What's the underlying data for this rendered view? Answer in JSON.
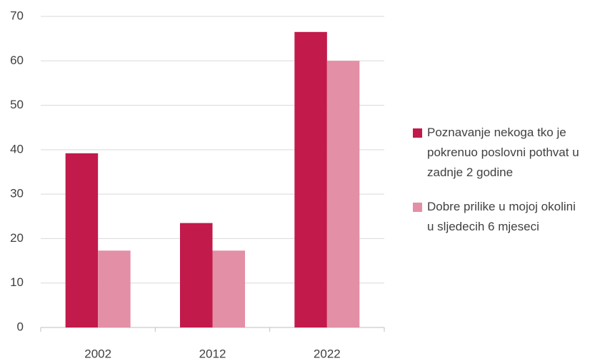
{
  "chart_data": {
    "type": "bar",
    "categories": [
      "2002",
      "2012",
      "2022"
    ],
    "series": [
      {
        "name": "Poznavanje nekoga tko je pokrenuo poslovni pothvat u zadnje 2 godine",
        "color": "#c21a4b",
        "values": [
          39.2,
          23.5,
          66.5
        ]
      },
      {
        "name": "Dobre prilike u mojoj okolini u sljedecih 6 mjeseci",
        "color": "#e38fa5",
        "values": [
          17.3,
          17.3,
          60
        ]
      }
    ],
    "ylim": [
      0,
      70
    ],
    "yticks": [
      0,
      10,
      20,
      30,
      40,
      50,
      60,
      70
    ],
    "grid": true,
    "legend": "right"
  }
}
